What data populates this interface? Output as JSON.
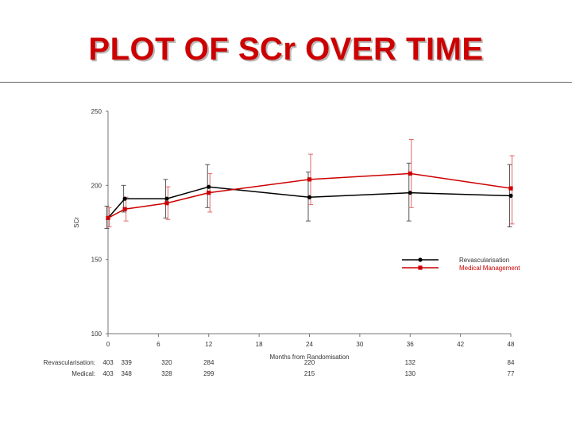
{
  "title": "PLOT OF SCr OVER TIME",
  "chart_data": {
    "type": "line",
    "ylabel": "SCr",
    "xlabel": "Months from Randomisation",
    "ylim": [
      100,
      250
    ],
    "yticks": [
      100,
      150,
      200,
      250
    ],
    "xlim": [
      0,
      48
    ],
    "xticks": [
      0,
      6,
      12,
      18,
      24,
      30,
      36,
      42,
      48
    ],
    "series": [
      {
        "name": "Revascularisation",
        "color": "#000000",
        "errcolor": "#555555",
        "marker": "circle",
        "x": [
          0,
          2,
          7,
          12,
          24,
          36,
          48
        ],
        "y": [
          178,
          191,
          191,
          199,
          192,
          195,
          193
        ],
        "err_low": [
          171,
          182,
          178,
          185,
          176,
          176,
          172
        ],
        "err_high": [
          186,
          200,
          204,
          214,
          209,
          215,
          214
        ]
      },
      {
        "name": "Medical Management",
        "color": "#cc0000",
        "errcolor": "#e06666",
        "marker": "square",
        "x": [
          0,
          2,
          7,
          12,
          24,
          36,
          48
        ],
        "y": [
          178,
          184,
          188,
          195,
          204,
          208,
          198
        ],
        "err_low": [
          172,
          176,
          177,
          182,
          187,
          185,
          174
        ],
        "err_high": [
          185,
          192,
          199,
          208,
          221,
          231,
          220
        ]
      }
    ],
    "risk_table": {
      "rows": [
        {
          "label": "Revascularisation:",
          "color": "#000000",
          "cells": [
            {
              "x": 0,
              "v": "403"
            },
            {
              "x": 2,
              "v": "339"
            },
            {
              "x": 7,
              "v": "320"
            },
            {
              "x": 12,
              "v": "284"
            },
            {
              "x": 24,
              "v": "220"
            },
            {
              "x": 36,
              "v": "132"
            },
            {
              "x": 48,
              "v": "84"
            }
          ]
        },
        {
          "label": "Medical:",
          "color": "#000000",
          "cells": [
            {
              "x": 0,
              "v": "403"
            },
            {
              "x": 2,
              "v": "348"
            },
            {
              "x": 7,
              "v": "328"
            },
            {
              "x": 12,
              "v": "299"
            },
            {
              "x": 24,
              "v": "215"
            },
            {
              "x": 36,
              "v": "130"
            },
            {
              "x": 48,
              "v": "77"
            }
          ]
        }
      ]
    }
  }
}
